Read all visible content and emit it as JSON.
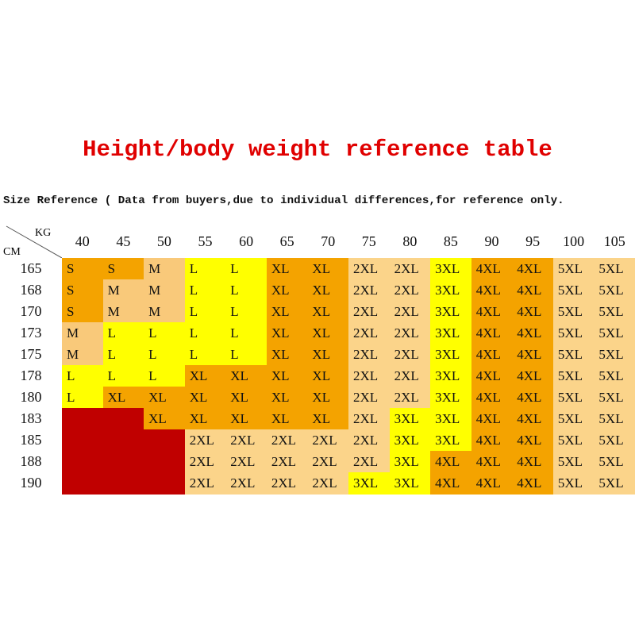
{
  "header": {
    "title": "Height/body weight reference table",
    "subtitle": "Size Reference ( Data from buyers,due to individual differences,for reference only."
  },
  "table": {
    "corner": {
      "top": "KG",
      "bottom": "CM"
    },
    "columns": [
      "40",
      "45",
      "50",
      "55",
      "60",
      "65",
      "70",
      "75",
      "80",
      "85",
      "90",
      "95",
      "100",
      "105"
    ],
    "rows": [
      {
        "height": "165",
        "cells": [
          "S",
          "S",
          "M",
          "L",
          "L",
          "XL",
          "XL",
          "2XL",
          "2XL",
          "3XL",
          "4XL",
          "4XL",
          "5XL",
          "5XL"
        ]
      },
      {
        "height": "168",
        "cells": [
          "S",
          "M",
          "M",
          "L",
          "L",
          "XL",
          "XL",
          "2XL",
          "2XL",
          "3XL",
          "4XL",
          "4XL",
          "5XL",
          "5XL"
        ]
      },
      {
        "height": "170",
        "cells": [
          "S",
          "M",
          "M",
          "L",
          "L",
          "XL",
          "XL",
          "2XL",
          "2XL",
          "3XL",
          "4XL",
          "4XL",
          "5XL",
          "5XL"
        ]
      },
      {
        "height": "173",
        "cells": [
          "M",
          "L",
          "L",
          "L",
          "L",
          "XL",
          "XL",
          "2XL",
          "2XL",
          "3XL",
          "4XL",
          "4XL",
          "5XL",
          "5XL"
        ]
      },
      {
        "height": "175",
        "cells": [
          "M",
          "L",
          "L",
          "L",
          "L",
          "XL",
          "XL",
          "2XL",
          "2XL",
          "3XL",
          "4XL",
          "4XL",
          "5XL",
          "5XL"
        ]
      },
      {
        "height": "178",
        "cells": [
          "L",
          "L",
          "L",
          "XL",
          "XL",
          "XL",
          "XL",
          "2XL",
          "2XL",
          "3XL",
          "4XL",
          "4XL",
          "5XL",
          "5XL"
        ]
      },
      {
        "height": "180",
        "cells": [
          "L",
          "XL",
          "XL",
          "XL",
          "XL",
          "XL",
          "XL",
          "2XL",
          "2XL",
          "3XL",
          "4XL",
          "4XL",
          "5XL",
          "5XL"
        ]
      },
      {
        "height": "183",
        "cells": [
          null,
          null,
          "XL",
          "XL",
          "XL",
          "XL",
          "XL",
          "2XL",
          "3XL",
          "3XL",
          "4XL",
          "4XL",
          "5XL",
          "5XL"
        ]
      },
      {
        "height": "185",
        "cells": [
          null,
          null,
          null,
          "2XL",
          "2XL",
          "2XL",
          "2XL",
          "2XL",
          "3XL",
          "3XL",
          "4XL",
          "4XL",
          "5XL",
          "5XL"
        ]
      },
      {
        "height": "188",
        "cells": [
          null,
          null,
          null,
          "2XL",
          "2XL",
          "2XL",
          "2XL",
          "2XL",
          "3XL",
          "4XL",
          "4XL",
          "4XL",
          "5XL",
          "5XL"
        ]
      },
      {
        "height": "190",
        "cells": [
          null,
          null,
          null,
          "2XL",
          "2XL",
          "2XL",
          "2XL",
          "3XL",
          "3XL",
          "4XL",
          "4XL",
          "4XL",
          "5XL",
          "5XL"
        ]
      }
    ],
    "size_colors": {
      "S": "#f4a300",
      "M": "#f9c97a",
      "L": "#ffff00",
      "XL": "#f4a300",
      "2XL": "#fbd48a",
      "3XL": "#ffff00",
      "4XL": "#f4a300",
      "5XL": "#fbd48a"
    },
    "empty_color": "#c00000"
  }
}
